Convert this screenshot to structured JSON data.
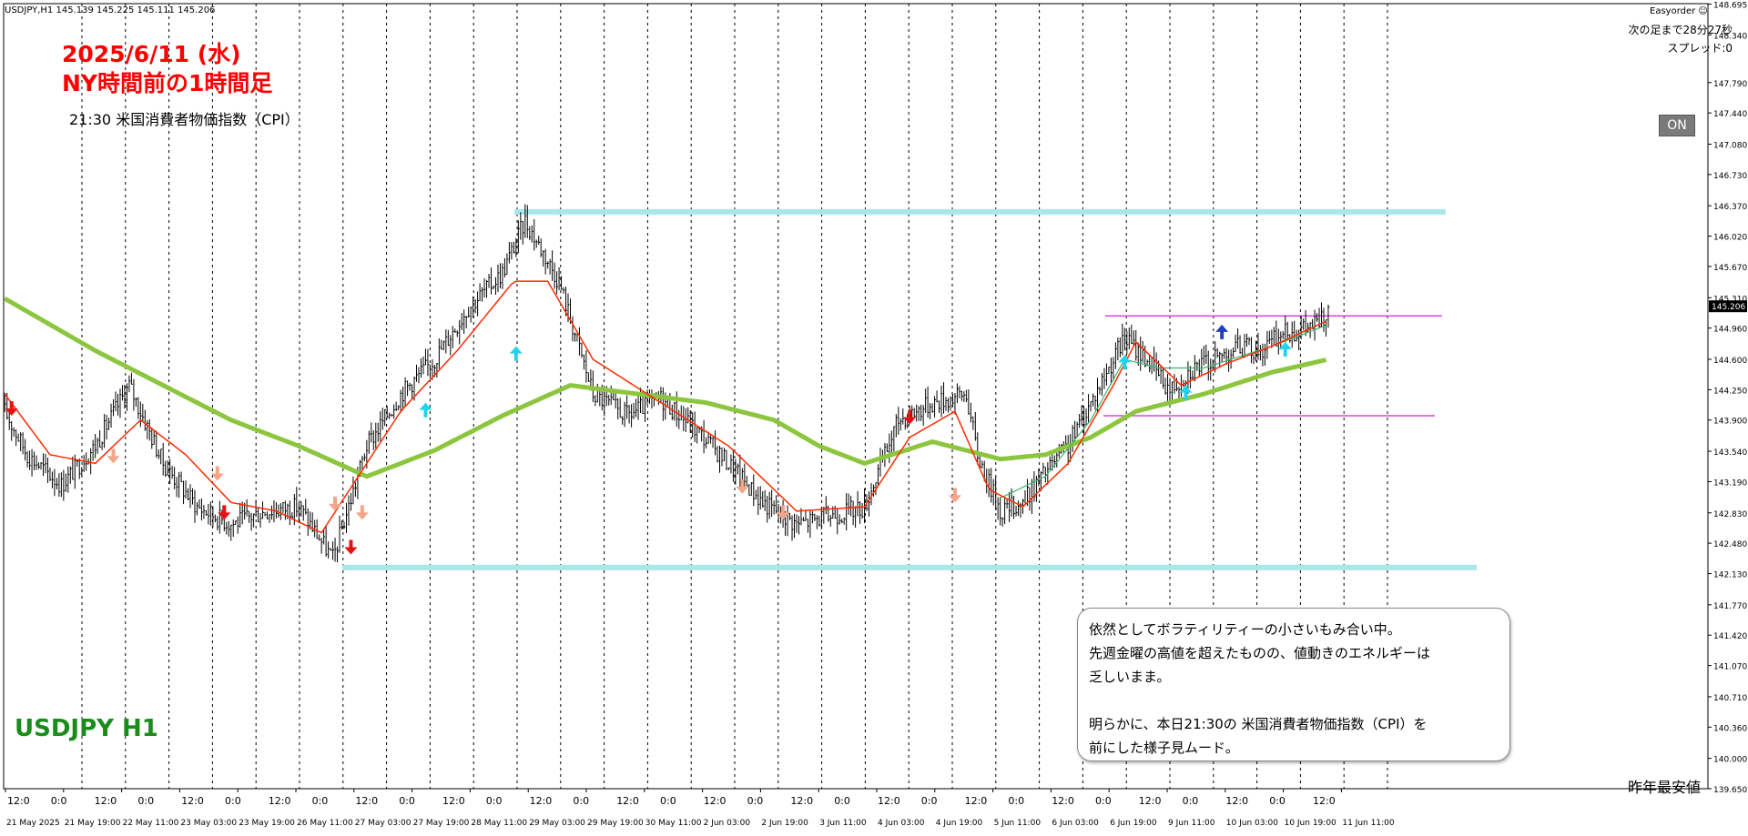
{
  "header": {
    "symbol_info": "USDJPY,H1  145.139 145.225 145.111 145.206",
    "easyorder": "Easyorder ☺",
    "countdown": "次の足まで28分27秒",
    "spread": "スプレッド:0"
  },
  "title": {
    "line1": "2025/6/11 (水)",
    "line2": "NY時間前の1時間足",
    "subtitle": "21:30 米国消費者物価指数（CPI）"
  },
  "symbol_label": "USDJPY H1",
  "on_button": "ON",
  "bottom_right_label": "昨年最安値",
  "comment": {
    "lines": [
      "依然としてボラティリティーの小さいもみ合い中。",
      "先週金曜の高値を超えたものの、値動きのエネルギーは",
      "乏しいまま。",
      "",
      "明らかに、本日21:30の 米国消費者物価指数（CPI）を",
      "前にした様子見ムード。"
    ]
  },
  "colors": {
    "up_candle": "#000000",
    "fast_ma": "#ff2a00",
    "mid_ma": "#3cb371",
    "slow_ma": "#8cc63f",
    "range_line": "#a9e7ea",
    "box_line": "#e040e0",
    "arrow_up": "#22d3ee",
    "arrow_down": "#e81010",
    "arrow_fade": "#f4a58a",
    "arrow_blue": "#1f3fbf"
  },
  "chart_data": {
    "type": "candlestick",
    "symbol": "USDJPY",
    "timeframe": "H1",
    "ylim": [
      139.65,
      148.7
    ],
    "y_ticks": [
      "148.695",
      "148.340",
      "147.790",
      "147.440",
      "147.080",
      "146.730",
      "146.370",
      "146.020",
      "145.670",
      "145.310",
      "144.960",
      "144.600",
      "144.250",
      "143.900",
      "143.540",
      "143.190",
      "142.830",
      "142.480",
      "142.130",
      "141.770",
      "141.420",
      "141.070",
      "140.710",
      "140.360",
      "140.000",
      "139.650"
    ],
    "current_price": "145.206",
    "x_tick_labels": [
      "21 May 2025",
      "21 May 19:00",
      "22 May 11:00",
      "23 May 03:00",
      "23 May 19:00",
      "26 May 11:00",
      "27 May 03:00",
      "27 May 19:00",
      "28 May 11:00",
      "29 May 03:00",
      "29 May 19:00",
      "30 May 11:00",
      "2 Jun 03:00",
      "2 Jun 19:00",
      "3 Jun 11:00",
      "4 Jun 03:00",
      "4 Jun 19:00",
      "5 Jun 11:00",
      "6 Jun 03:00",
      "6 Jun 19:00",
      "9 Jun 11:00",
      "10 Jun 03:00",
      "10 Jun 19:00",
      "11 Jun 11:00"
    ],
    "session_labels": [
      "12:0",
      "0:0",
      "12:0",
      "0:0",
      "12:0",
      "0:0",
      "12:0",
      "0:0",
      "12:0",
      "0:0",
      "12:0",
      "0:0",
      "12:0",
      "0:0",
      "12:0",
      "0:0",
      "12:0",
      "0:0",
      "12:0",
      "0:0",
      "12:0",
      "0:0",
      "12:0",
      "0:0",
      "12:0",
      "0:0",
      "12:0",
      "0:0",
      "12:0",
      "0:0",
      "12:0"
    ],
    "path_points": [
      [
        0,
        144.0
      ],
      [
        10,
        143.5
      ],
      [
        25,
        143.15
      ],
      [
        40,
        143.6
      ],
      [
        55,
        144.3
      ],
      [
        70,
        143.4
      ],
      [
        85,
        142.9
      ],
      [
        100,
        142.7
      ],
      [
        115,
        142.85
      ],
      [
        130,
        142.9
      ],
      [
        145,
        142.3
      ],
      [
        160,
        143.6
      ],
      [
        175,
        144.2
      ],
      [
        190,
        144.6
      ],
      [
        205,
        145.2
      ],
      [
        220,
        145.6
      ],
      [
        230,
        146.2
      ],
      [
        245,
        145.5
      ],
      [
        260,
        144.2
      ],
      [
        275,
        143.95
      ],
      [
        290,
        144.15
      ],
      [
        305,
        143.8
      ],
      [
        320,
        143.4
      ],
      [
        335,
        142.95
      ],
      [
        350,
        142.7
      ],
      [
        365,
        142.8
      ],
      [
        380,
        142.9
      ],
      [
        395,
        143.9
      ],
      [
        410,
        144.1
      ],
      [
        425,
        144.2
      ],
      [
        430,
        143.5
      ],
      [
        440,
        142.85
      ],
      [
        450,
        142.95
      ],
      [
        460,
        143.3
      ],
      [
        470,
        143.6
      ],
      [
        480,
        144.1
      ],
      [
        495,
        144.85
      ],
      [
        505,
        144.6
      ],
      [
        515,
        144.25
      ],
      [
        525,
        144.5
      ],
      [
        535,
        144.6
      ],
      [
        545,
        144.75
      ],
      [
        555,
        144.7
      ],
      [
        565,
        144.9
      ],
      [
        575,
        144.95
      ],
      [
        585,
        145.1
      ]
    ],
    "fast_ma_points": [
      [
        0,
        144.2
      ],
      [
        20,
        143.5
      ],
      [
        40,
        143.4
      ],
      [
        60,
        143.9
      ],
      [
        80,
        143.5
      ],
      [
        100,
        142.95
      ],
      [
        120,
        142.85
      ],
      [
        140,
        142.6
      ],
      [
        155,
        143.2
      ],
      [
        175,
        144.0
      ],
      [
        200,
        144.7
      ],
      [
        225,
        145.5
      ],
      [
        240,
        145.5
      ],
      [
        260,
        144.6
      ],
      [
        290,
        144.1
      ],
      [
        320,
        143.6
      ],
      [
        350,
        142.85
      ],
      [
        380,
        142.9
      ],
      [
        400,
        143.7
      ],
      [
        420,
        144.0
      ],
      [
        435,
        143.1
      ],
      [
        450,
        142.9
      ],
      [
        470,
        143.4
      ],
      [
        490,
        144.3
      ],
      [
        500,
        144.8
      ],
      [
        520,
        144.3
      ],
      [
        540,
        144.55
      ],
      [
        560,
        144.75
      ],
      [
        585,
        145.05
      ]
    ],
    "mid_ma_points": [
      [
        440,
        143.0
      ],
      [
        460,
        143.25
      ],
      [
        480,
        143.9
      ],
      [
        495,
        144.6
      ],
      [
        510,
        144.5
      ],
      [
        530,
        144.5
      ],
      [
        560,
        144.75
      ],
      [
        585,
        145.0
      ]
    ],
    "slow_ma_points": [
      [
        0,
        145.3
      ],
      [
        40,
        144.7
      ],
      [
        70,
        144.3
      ],
      [
        100,
        143.9
      ],
      [
        130,
        143.6
      ],
      [
        160,
        143.25
      ],
      [
        190,
        143.55
      ],
      [
        220,
        143.95
      ],
      [
        250,
        144.3
      ],
      [
        280,
        144.2
      ],
      [
        310,
        144.1
      ],
      [
        340,
        143.9
      ],
      [
        360,
        143.6
      ],
      [
        380,
        143.4
      ],
      [
        410,
        143.65
      ],
      [
        440,
        143.45
      ],
      [
        460,
        143.5
      ],
      [
        480,
        143.7
      ],
      [
        500,
        144.0
      ],
      [
        530,
        144.2
      ],
      [
        560,
        144.45
      ],
      [
        585,
        144.6
      ]
    ],
    "ranges": [
      {
        "name": "range-high",
        "y": 146.3
      },
      {
        "name": "range-low",
        "y": 142.2
      },
      {
        "name": "box-high",
        "y": 145.1
      },
      {
        "name": "box-low",
        "y": 143.95
      }
    ],
    "signals": [
      {
        "type": "down",
        "bar": 3,
        "price": 143.95
      },
      {
        "type": "fade-down",
        "bar": 48,
        "price": 143.4
      },
      {
        "type": "fade-down",
        "bar": 94,
        "price": 143.2
      },
      {
        "type": "down",
        "bar": 97,
        "price": 142.75
      },
      {
        "type": "fade-down",
        "bar": 146,
        "price": 142.85
      },
      {
        "type": "down",
        "bar": 153,
        "price": 142.35
      },
      {
        "type": "fade-down",
        "bar": 158,
        "price": 142.75
      },
      {
        "type": "up",
        "bar": 186,
        "price": 144.1
      },
      {
        "type": "up",
        "bar": 226,
        "price": 144.75
      },
      {
        "type": "fade-down",
        "bar": 326,
        "price": 143.05
      },
      {
        "type": "fade-down",
        "bar": 344,
        "price": 142.75
      },
      {
        "type": "down",
        "bar": 400,
        "price": 143.85
      },
      {
        "type": "fade-down",
        "bar": 420,
        "price": 142.95
      },
      {
        "type": "up",
        "bar": 495,
        "price": 144.65
      },
      {
        "type": "up",
        "bar": 522,
        "price": 144.3
      },
      {
        "type": "blue-up",
        "bar": 538,
        "price": 145.0
      },
      {
        "type": "up",
        "bar": 566,
        "price": 144.8
      }
    ]
  }
}
